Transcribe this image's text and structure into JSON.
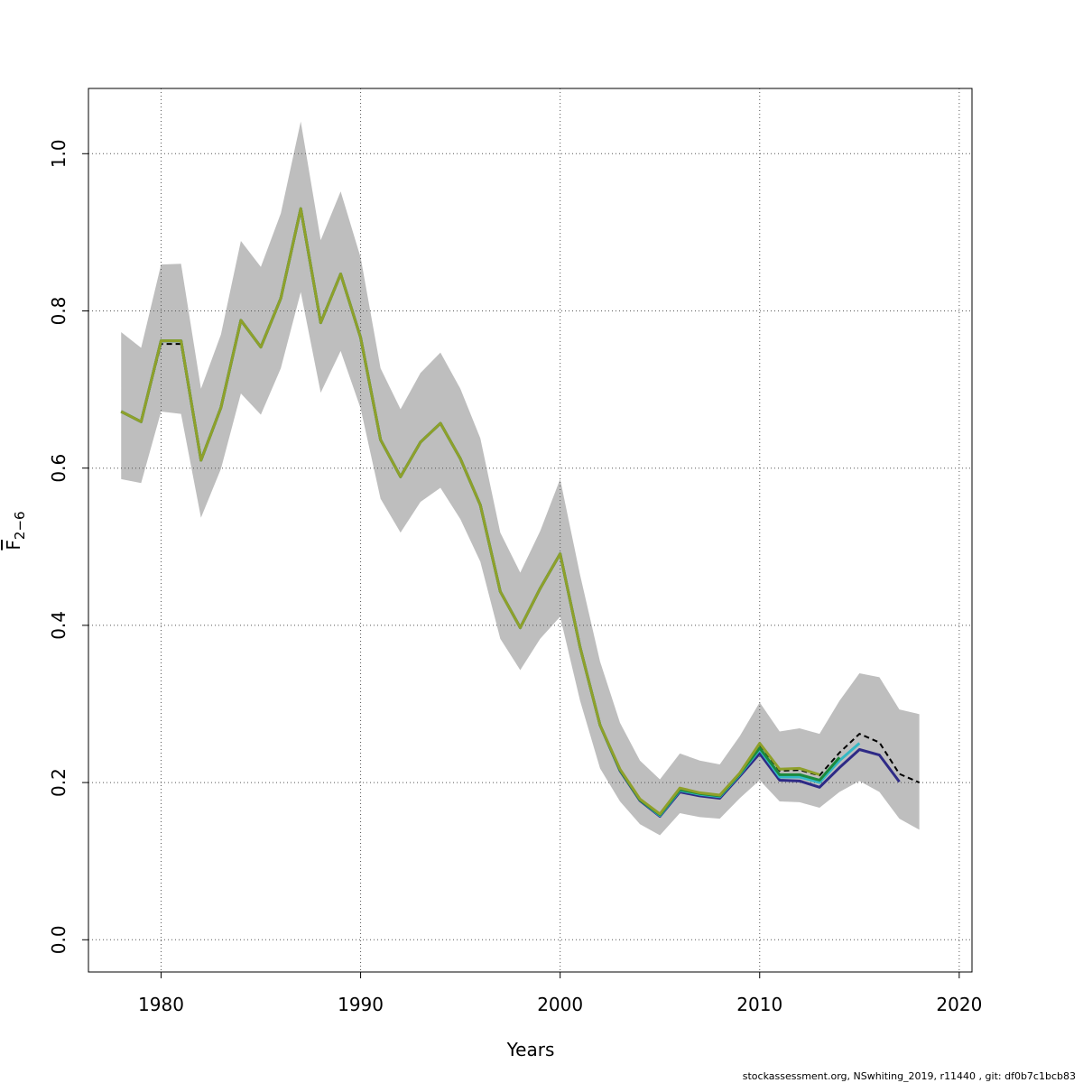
{
  "chart_data": {
    "type": "line",
    "xlabel": "Years",
    "ylabel": "F",
    "ylabel_sub": "2−6",
    "footer": "stockassessment.org, NSwhiting_2019, r11440 , git: df0b7c1bcb83",
    "x": [
      1978,
      1979,
      1980,
      1981,
      1982,
      1983,
      1984,
      1985,
      1986,
      1987,
      1988,
      1989,
      1990,
      1991,
      1992,
      1993,
      1994,
      1995,
      1996,
      1997,
      1998,
      1999,
      2000,
      2001,
      2002,
      2003,
      2004,
      2005,
      2006,
      2007,
      2008,
      2009,
      2010,
      2011,
      2012,
      2013,
      2014,
      2015,
      2016,
      2017,
      2018
    ],
    "xlim": [
      1976.36,
      2020.64
    ],
    "xticks": [
      1980,
      1990,
      2000,
      2010,
      2020
    ],
    "ylim": [
      -0.041,
      1.083
    ],
    "yticks": [
      {
        "value": 0,
        "label": "0.0"
      },
      0.2,
      0.4,
      0.6,
      0.8,
      {
        "value": 1,
        "label": "1.0"
      }
    ],
    "grid": true,
    "band": {
      "color": "#bebebe",
      "upper": [
        0.773,
        0.753,
        0.859,
        0.86,
        0.701,
        0.77,
        0.889,
        0.856,
        0.924,
        1.041,
        0.89,
        0.952,
        0.868,
        0.727,
        0.675,
        0.721,
        0.747,
        0.701,
        0.638,
        0.518,
        0.467,
        0.52,
        0.586,
        0.464,
        0.354,
        0.276,
        0.228,
        0.204,
        0.237,
        0.228,
        0.223,
        0.259,
        0.302,
        0.265,
        0.269,
        0.262,
        0.304,
        0.339,
        0.334,
        0.293,
        0.287
      ],
      "lower": [
        0.586,
        0.581,
        0.672,
        0.669,
        0.537,
        0.599,
        0.695,
        0.668,
        0.727,
        0.824,
        0.696,
        0.749,
        0.676,
        0.561,
        0.518,
        0.557,
        0.575,
        0.535,
        0.481,
        0.383,
        0.343,
        0.383,
        0.411,
        0.304,
        0.218,
        0.176,
        0.147,
        0.133,
        0.161,
        0.156,
        0.154,
        0.18,
        0.203,
        0.176,
        0.175,
        0.168,
        0.188,
        0.202,
        0.188,
        0.154,
        0.14
      ]
    },
    "series": [
      {
        "color": "#000000",
        "dashed": true,
        "values": [
          0.672,
          0.659,
          0.758,
          0.758,
          0.61,
          0.677,
          0.788,
          0.754,
          0.816,
          0.93,
          0.785,
          0.847,
          0.766,
          0.636,
          0.589,
          0.633,
          0.657,
          0.612,
          0.553,
          0.443,
          0.397,
          0.447,
          0.491,
          0.372,
          0.273,
          0.217,
          0.179,
          0.16,
          0.193,
          0.187,
          0.184,
          0.212,
          0.248,
          0.215,
          0.216,
          0.209,
          0.238,
          0.262,
          0.251,
          0.211,
          0.2
        ]
      },
      {
        "color": "#2e2a86",
        "values": [
          0.672,
          0.659,
          0.762,
          0.762,
          0.61,
          0.677,
          0.788,
          0.754,
          0.816,
          0.93,
          0.785,
          0.847,
          0.766,
          0.636,
          0.589,
          0.633,
          0.657,
          0.612,
          0.553,
          0.443,
          0.397,
          0.447,
          0.491,
          0.372,
          0.273,
          0.215,
          0.177,
          0.157,
          0.188,
          0.183,
          0.18,
          0.208,
          0.237,
          0.203,
          0.202,
          0.194,
          0.219,
          0.242,
          0.235,
          0.201,
          null
        ]
      },
      {
        "color": "#33b8c4",
        "values": [
          0.672,
          0.659,
          0.762,
          0.762,
          0.61,
          0.677,
          0.788,
          0.754,
          0.816,
          0.93,
          0.785,
          0.847,
          0.766,
          0.636,
          0.589,
          0.633,
          0.657,
          0.612,
          0.553,
          0.443,
          0.397,
          0.447,
          0.491,
          0.372,
          0.273,
          0.216,
          0.178,
          0.158,
          0.19,
          0.185,
          0.182,
          0.21,
          0.242,
          0.207,
          0.207,
          0.2,
          0.228,
          0.25,
          null,
          null,
          null
        ]
      },
      {
        "color": "#1c8a3c",
        "values": [
          0.672,
          0.659,
          0.762,
          0.762,
          0.61,
          0.677,
          0.788,
          0.754,
          0.816,
          0.93,
          0.785,
          0.847,
          0.766,
          0.636,
          0.589,
          0.633,
          0.657,
          0.612,
          0.553,
          0.443,
          0.397,
          0.447,
          0.491,
          0.372,
          0.273,
          0.216,
          0.178,
          0.159,
          0.191,
          0.186,
          0.183,
          0.211,
          0.244,
          0.21,
          0.21,
          0.203,
          0.232,
          null,
          null,
          null,
          null
        ]
      },
      {
        "color": "#8fa02a",
        "values": [
          0.672,
          0.659,
          0.762,
          0.762,
          0.61,
          0.677,
          0.788,
          0.754,
          0.816,
          0.93,
          0.785,
          0.847,
          0.766,
          0.636,
          0.589,
          0.633,
          0.657,
          0.612,
          0.553,
          0.443,
          0.397,
          0.447,
          0.491,
          0.372,
          0.273,
          0.217,
          0.179,
          0.16,
          0.193,
          0.187,
          0.184,
          0.212,
          0.25,
          0.217,
          0.218,
          0.21,
          null,
          null,
          null,
          null,
          null
        ]
      }
    ]
  }
}
